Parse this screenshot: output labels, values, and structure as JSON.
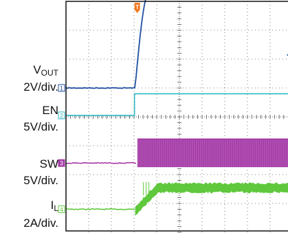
{
  "chart_data": {
    "type": "line",
    "title": "",
    "x_divisions": 10,
    "y_divisions": 8,
    "grid": true,
    "trigger_marker": "T",
    "trigger_color": "#f07a1e",
    "channels": [
      {
        "id": "1",
        "name": "V",
        "subscript": "OUT",
        "scale": "2V/div.",
        "color": "#1f4fa0",
        "marker_color": "#1f4fa0",
        "level_div": 5.0,
        "shape": "ramp",
        "t_start_div": 3.05,
        "t_end_div": 3.6,
        "amplitude_div": 3.25
      },
      {
        "id": "2",
        "name": "EN",
        "subscript": "",
        "scale": "5V/div.",
        "color": "#2fb8c6",
        "marker_color": "#2fb8c6",
        "level_div": 4.05,
        "shape": "step",
        "t_start_div": 3.02,
        "amplitude_div": 0.75
      },
      {
        "id": "3",
        "name": "SW",
        "subscript": "",
        "scale": "5V/div.",
        "color": "#a43aa6",
        "marker_color": "#a43aa6",
        "level_div": 2.4,
        "shape": "switching",
        "t_start_div": 3.15,
        "amplitude_div": 0.85
      },
      {
        "id": "4",
        "name": "I",
        "subscript": "L",
        "scale": "2A/div.",
        "color": "#5fc83c",
        "marker_color": "#5fc83c",
        "level_div": 0.8,
        "shape": "inductor",
        "t_start_div": 3.05,
        "amplitude_div": 0.8
      }
    ]
  },
  "labels": {
    "ch1_name": "V",
    "ch1_sub": "OUT",
    "ch1_scale": "2V/div.",
    "ch2_name": "EN",
    "ch2_scale": "5V/div.",
    "ch3_name": "SW",
    "ch3_scale": "5V/div.",
    "ch4_name": "I",
    "ch4_sub": "L",
    "ch4_scale": "2A/div."
  }
}
